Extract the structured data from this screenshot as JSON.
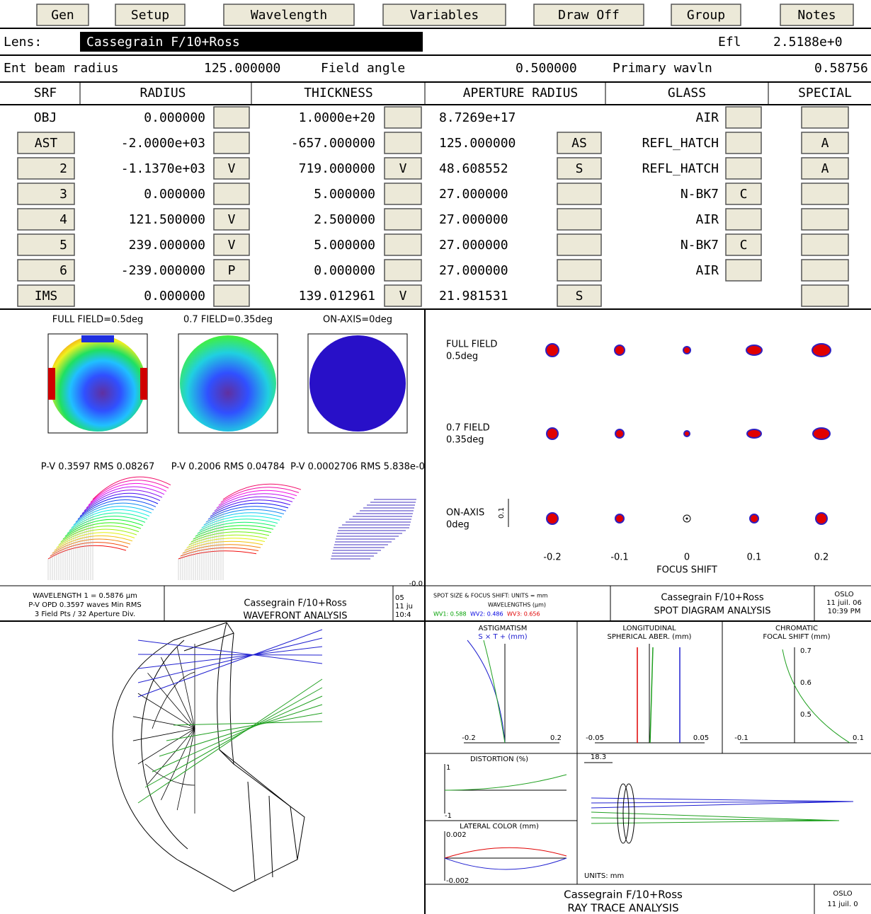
{
  "toolbar": [
    "Gen",
    "Setup",
    "Wavelength",
    "Variables",
    "Draw Off",
    "Group",
    "Notes"
  ],
  "lens": {
    "label": "Lens:",
    "name": "Cassegrain F/10+Ross",
    "efl_label": "Efl",
    "efl": "2.5188e+0"
  },
  "beam": {
    "ent_label": "Ent beam radius",
    "ent": "125.000000",
    "field_label": "Field angle",
    "field": "0.500000",
    "wavln_label": "Primary wavln",
    "wavln": "0.58756"
  },
  "table": {
    "headers": [
      "SRF",
      "RADIUS",
      "THICKNESS",
      "APERTURE RADIUS",
      "GLASS",
      "SPECIAL"
    ],
    "rows": [
      {
        "srf": "OBJ",
        "radius": "0.000000",
        "thickness": "1.0000e+20",
        "aperture": "8.7269e+17",
        "glass": "AIR"
      },
      {
        "srf": "AST",
        "radius": "-2.0000e+03",
        "thickness": "-657.000000",
        "aperture": "125.000000",
        "aperture_flag": "AS",
        "glass": "REFL_HATCH",
        "special": "A"
      },
      {
        "srf": "2",
        "radius": "-1.1370e+03",
        "radius_flag": "V",
        "thickness": "719.000000",
        "thickness_flag": "V",
        "aperture": "48.608552",
        "aperture_flag": "S",
        "glass": "REFL_HATCH",
        "special": "A"
      },
      {
        "srf": "3",
        "radius": "0.000000",
        "thickness": "5.000000",
        "aperture": "27.000000",
        "glass": "N-BK7",
        "glass_flag": "C"
      },
      {
        "srf": "4",
        "radius": "121.500000",
        "radius_flag": "V",
        "thickness": "2.500000",
        "aperture": "27.000000",
        "glass": "AIR"
      },
      {
        "srf": "5",
        "radius": "239.000000",
        "radius_flag": "V",
        "thickness": "5.000000",
        "aperture": "27.000000",
        "glass": "N-BK7",
        "glass_flag": "C"
      },
      {
        "srf": "6",
        "radius": "-239.000000",
        "radius_flag": "P",
        "thickness": "0.000000",
        "aperture": "27.000000",
        "glass": "AIR"
      },
      {
        "srf": "IMS",
        "radius": "0.000000",
        "thickness": "139.012961",
        "thickness_flag": "V",
        "aperture": "21.981531",
        "aperture_flag": "S"
      }
    ]
  },
  "wavefront": {
    "fields": [
      "FULL FIELD=0.5deg",
      "0.7 FIELD=0.35deg",
      "ON-AXIS=0deg"
    ],
    "stats": [
      "P-V 0.3597 RMS 0.08267",
      "P-V 0.2006 RMS 0.04784",
      "P-V 0.0002706 RMS 5.838e-0"
    ],
    "edge": "-0.0",
    "footer": {
      "info": [
        "WAVELENGTH 1 = 0.5876 µm",
        "P-V OPD 0.3597 waves Min RMS",
        "3 Field Pts / 32 Aperture Div."
      ],
      "lens": "Cassegrain F/10+Ross",
      "title": "WAVEFRONT ANALYSIS",
      "stamp": [
        "05",
        "11 ju",
        "10:4"
      ]
    }
  },
  "spot": {
    "fields": [
      [
        "FULL FIELD",
        "0.5deg"
      ],
      [
        "0.7 FIELD",
        "0.35deg"
      ],
      [
        "ON-AXIS",
        "0deg"
      ]
    ],
    "scale": "0.1",
    "xticks": [
      "-0.2",
      "-0.1",
      "0",
      "0.1",
      "0.2"
    ],
    "xlabel": "FOCUS SHIFT",
    "footer": {
      "units": "SPOT SIZE & FOCUS SHIFT: UNITS = mm",
      "wavelengths": "WAVELENGTHS (µm)",
      "wv": [
        "WV1: 0.588",
        "WV2: 0.486",
        "WV3: 0.656"
      ],
      "lens": "Cassegrain F/10+Ross",
      "title": "SPOT DIAGRAM ANALYSIS",
      "stamp": [
        "OSLO",
        "11 juil. 06",
        "10:39 PM"
      ]
    }
  },
  "raytrace": {
    "astig": {
      "title": "ASTIGMATISM",
      "units": "S × T +  (mm)",
      "ticks": [
        "-0.2",
        "0.2"
      ]
    },
    "spherical": {
      "title": [
        "LONGITUDINAL",
        "SPHERICAL ABER. (mm)"
      ],
      "ticks": [
        "-0.05",
        "0.05"
      ]
    },
    "chromatic": {
      "title": [
        "CHROMATIC",
        "FOCAL SHIFT (mm)"
      ],
      "ticks": [
        "-0.1",
        "0.1"
      ],
      "yticks": [
        "0.7",
        "0.6",
        "0.5"
      ]
    },
    "distortion": {
      "title": "DISTORTION (%)",
      "ticks": [
        "1",
        "-1"
      ]
    },
    "lateral": {
      "title": "LATERAL COLOR (mm)",
      "ticks": [
        "0.002",
        "-0.002"
      ]
    },
    "scale": "18.3",
    "units": "UNITS: mm",
    "footer": {
      "lens": "Cassegrain F/10+Ross",
      "title": "RAY TRACE ANALYSIS",
      "stamp": [
        "OSLO",
        "11 juil. 0"
      ]
    }
  }
}
